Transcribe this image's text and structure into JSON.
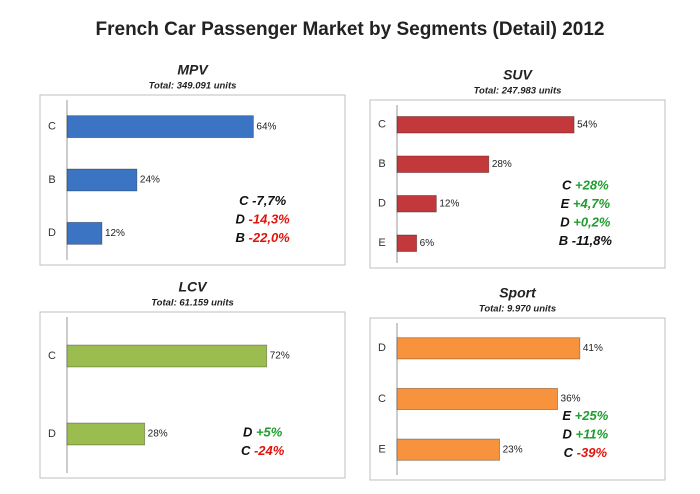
{
  "title": "French Car Passenger Market by Segments (Detail) 2012",
  "chart_data": [
    {
      "type": "bar",
      "orientation": "horizontal",
      "title": "MPV",
      "subtitle": "Total: 349.091 units",
      "categories": [
        "C",
        "B",
        "D"
      ],
      "values": [
        64,
        24,
        12
      ],
      "value_labels": [
        "64%",
        "24%",
        "12%"
      ],
      "color": "#3b74c3",
      "xlim": [
        0,
        80
      ],
      "annotations": [
        {
          "segment": "C",
          "change": "-7,7%",
          "color": "#111111"
        },
        {
          "segment": "D",
          "change": "-14,3%",
          "color": "#e3120b"
        },
        {
          "segment": "B",
          "change": "-22,0%",
          "color": "#e3120b"
        }
      ]
    },
    {
      "type": "bar",
      "orientation": "horizontal",
      "title": "SUV",
      "subtitle": "Total: 247.983 units",
      "categories": [
        "C",
        "B",
        "D",
        "E"
      ],
      "values": [
        54,
        28,
        12,
        6
      ],
      "value_labels": [
        "54%",
        "28%",
        "12%",
        "6%"
      ],
      "color": "#c3383a",
      "xlim": [
        0,
        68
      ],
      "annotations": [
        {
          "segment": "C",
          "change": "+28%",
          "color": "#1e9e2e"
        },
        {
          "segment": "E",
          "change": "+4,7%",
          "color": "#1e9e2e"
        },
        {
          "segment": "D",
          "change": "+0,2%",
          "color": "#1e9e2e"
        },
        {
          "segment": "B",
          "change": "-11,8%",
          "color": "#111111"
        }
      ]
    },
    {
      "type": "bar",
      "orientation": "horizontal",
      "title": "LCV",
      "subtitle": "Total: 61.159 units",
      "categories": [
        "C",
        "D"
      ],
      "values": [
        72,
        28
      ],
      "value_labels": [
        "72%",
        "28%"
      ],
      "color": "#9bbd4f",
      "xlim": [
        0,
        84
      ],
      "annotations": [
        {
          "segment": "D",
          "change": "+5%",
          "color": "#1e9e2e"
        },
        {
          "segment": "C",
          "change": "-24%",
          "color": "#e3120b"
        }
      ]
    },
    {
      "type": "bar",
      "orientation": "horizontal",
      "title": "Sport",
      "subtitle": "Total: 9.970 units",
      "categories": [
        "D",
        "C",
        "E"
      ],
      "values": [
        41,
        36,
        23
      ],
      "value_labels": [
        "41%",
        "36%",
        "23%"
      ],
      "color": "#f7933c",
      "xlim": [
        0,
        50
      ],
      "annotations": [
        {
          "segment": "E",
          "change": "+25%",
          "color": "#1e9e2e"
        },
        {
          "segment": "D",
          "change": "+11%",
          "color": "#1e9e2e"
        },
        {
          "segment": "C",
          "change": "-39%",
          "color": "#e3120b"
        }
      ]
    }
  ]
}
